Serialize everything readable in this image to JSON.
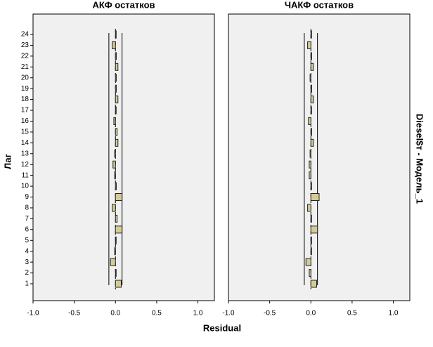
{
  "labels": {
    "xlabel": "Residual",
    "ylabel": "Лаг",
    "facet_label": "Diesel$т - Модель_1"
  },
  "chart_data": [
    {
      "type": "bar",
      "orientation": "horizontal",
      "title": "АКФ остатков",
      "categories": [
        "1",
        "2",
        "3",
        "4",
        "5",
        "6",
        "7",
        "8",
        "9",
        "10",
        "11",
        "12",
        "13",
        "14",
        "15",
        "16",
        "17",
        "18",
        "19",
        "20",
        "21",
        "22",
        "23",
        "24"
      ],
      "values": [
        0.07,
        0.0,
        -0.06,
        -0.01,
        0.0,
        0.08,
        0.02,
        -0.04,
        0.08,
        0.01,
        -0.01,
        -0.03,
        -0.01,
        0.03,
        0.02,
        -0.02,
        0.0,
        0.03,
        0.01,
        0.01,
        0.03,
        0.01,
        -0.04,
        0.0
      ],
      "color": "#d4cc94",
      "confidence_limits": [
        -0.08,
        0.08
      ],
      "xlim": [
        -1.0,
        1.2
      ],
      "xticks": [
        {
          "value": -1.0,
          "label": "-1.0"
        },
        -0.5,
        {
          "value": 0.0,
          "label": "0.0"
        },
        0.5,
        {
          "value": 1.0,
          "label": "1.0"
        }
      ]
    },
    {
      "type": "bar",
      "orientation": "horizontal",
      "title": "ЧАКФ остатков",
      "categories": [
        "1",
        "2",
        "3",
        "4",
        "5",
        "6",
        "7",
        "8",
        "9",
        "10",
        "11",
        "12",
        "13",
        "14",
        "15",
        "16",
        "17",
        "18",
        "19",
        "20",
        "21",
        "22",
        "23",
        "24"
      ],
      "values": [
        0.07,
        -0.02,
        -0.06,
        0.0,
        0.0,
        0.08,
        0.0,
        -0.04,
        0.1,
        0.0,
        -0.02,
        -0.02,
        -0.01,
        0.03,
        0.01,
        -0.03,
        0.0,
        0.03,
        0.01,
        -0.01,
        0.03,
        0.01,
        -0.04,
        0.0
      ],
      "color": "#d4cc94",
      "confidence_limits": [
        -0.08,
        0.08
      ],
      "xlim": [
        -1.0,
        1.2
      ],
      "xticks": [
        {
          "value": -1.0,
          "label": "-1.0"
        },
        -0.5,
        {
          "value": 0.0,
          "label": "0.0"
        },
        0.5,
        {
          "value": 1.0,
          "label": "1.0"
        }
      ]
    }
  ]
}
